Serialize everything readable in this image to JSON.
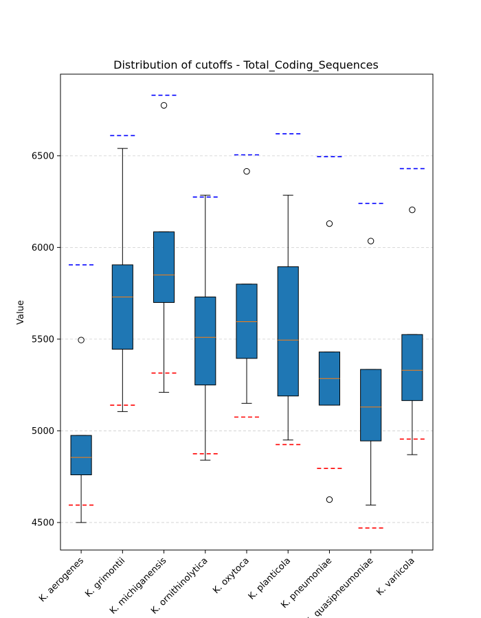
{
  "chart_data": {
    "type": "boxplot",
    "title": "Distribution of cutoffs - Total_Coding_Sequences",
    "xlabel": "",
    "ylabel": "Value",
    "ylim": [
      4350,
      6945
    ],
    "yticks": [
      4500,
      5000,
      5500,
      6000,
      6500
    ],
    "grid": "horizontal dashed",
    "box_color": "#1f77b4",
    "median_color": "#ff7f0e",
    "upper_cutoff_color": "#0000ff",
    "lower_cutoff_color": "#ff0000",
    "categories": [
      "K. aerogenes",
      "K. grimontii",
      "K. michiganensis",
      "K. ornithinolytica",
      "K. oxytoca",
      "K. planticola",
      "K. pneumoniae",
      "K. quasipneumoniae",
      "K. variicola"
    ],
    "boxes": [
      {
        "whisker_low": 4500,
        "q1": 4760,
        "median": 4855,
        "q3": 4975,
        "whisker_high": 4975,
        "outliers": [
          5495
        ],
        "upper_cutoff": 5905,
        "lower_cutoff": 4595
      },
      {
        "whisker_low": 5105,
        "q1": 5445,
        "median": 5730,
        "q3": 5905,
        "whisker_high": 6540,
        "outliers": [],
        "upper_cutoff": 6610,
        "lower_cutoff": 5140
      },
      {
        "whisker_low": 5210,
        "q1": 5700,
        "median": 5850,
        "q3": 6085,
        "whisker_high": 6085,
        "outliers": [
          6775
        ],
        "upper_cutoff": 6830,
        "lower_cutoff": 5315
      },
      {
        "whisker_low": 4840,
        "q1": 5250,
        "median": 5510,
        "q3": 5730,
        "whisker_high": 6285,
        "outliers": [],
        "upper_cutoff": 6275,
        "lower_cutoff": 4875
      },
      {
        "whisker_low": 5150,
        "q1": 5395,
        "median": 5595,
        "q3": 5800,
        "whisker_high": 5800,
        "outliers": [
          6415
        ],
        "upper_cutoff": 6505,
        "lower_cutoff": 5075
      },
      {
        "whisker_low": 4950,
        "q1": 5190,
        "median": 5495,
        "q3": 5895,
        "whisker_high": 6285,
        "outliers": [],
        "upper_cutoff": 6620,
        "lower_cutoff": 4925
      },
      {
        "whisker_low": 5140,
        "q1": 5140,
        "median": 5285,
        "q3": 5430,
        "whisker_high": 5430,
        "outliers": [
          6130,
          4625
        ],
        "upper_cutoff": 6495,
        "lower_cutoff": 4795
      },
      {
        "whisker_low": 4595,
        "q1": 4945,
        "median": 5130,
        "q3": 5335,
        "whisker_high": 5335,
        "outliers": [
          6035
        ],
        "upper_cutoff": 6240,
        "lower_cutoff": 4470
      },
      {
        "whisker_low": 4870,
        "q1": 5165,
        "median": 5330,
        "q3": 5525,
        "whisker_high": 5525,
        "outliers": [
          6205
        ],
        "upper_cutoff": 6430,
        "lower_cutoff": 4955
      }
    ]
  }
}
